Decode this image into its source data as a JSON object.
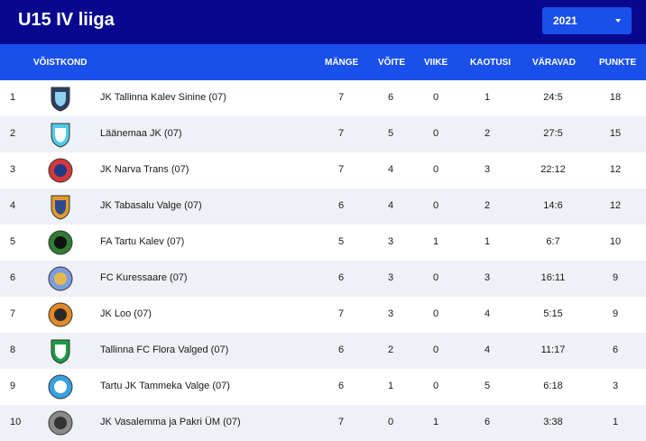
{
  "page": {
    "title": "U15 IV liiga"
  },
  "season_select": {
    "value": "2021",
    "icon": "chevron-down-icon"
  },
  "table": {
    "headers": {
      "team": "VÕISTKOND",
      "played": "MÄNGE",
      "won": "VÕITE",
      "draw": "VIIKE",
      "lost": "KAOTUSI",
      "goals": "VÄRAVAD",
      "points": "PUNKTE"
    },
    "rows": [
      {
        "pos": "1",
        "team": "JK Tallinna Kalev Sinine (07)",
        "played": "7",
        "won": "6",
        "draw": "0",
        "lost": "1",
        "goals": "24:5",
        "points": "18",
        "logo": "tallinna-kalev-crest"
      },
      {
        "pos": "2",
        "team": "Läänemaa JK (07)",
        "played": "7",
        "won": "5",
        "draw": "0",
        "lost": "2",
        "goals": "27:5",
        "points": "15",
        "logo": "laanemaa-crest"
      },
      {
        "pos": "3",
        "team": "JK Narva Trans (07)",
        "played": "7",
        "won": "4",
        "draw": "0",
        "lost": "3",
        "goals": "22:12",
        "points": "12",
        "logo": "narva-trans-crest"
      },
      {
        "pos": "4",
        "team": "JK Tabasalu Valge (07)",
        "played": "6",
        "won": "4",
        "draw": "0",
        "lost": "2",
        "goals": "14:6",
        "points": "12",
        "logo": "tabasalu-crest"
      },
      {
        "pos": "5",
        "team": "FA Tartu Kalev (07)",
        "played": "5",
        "won": "3",
        "draw": "1",
        "lost": "1",
        "goals": "6:7",
        "points": "10",
        "logo": "tartu-kalev-crest"
      },
      {
        "pos": "6",
        "team": "FC Kuressaare (07)",
        "played": "6",
        "won": "3",
        "draw": "0",
        "lost": "3",
        "goals": "16:11",
        "points": "9",
        "logo": "kuressaare-crest"
      },
      {
        "pos": "7",
        "team": "JK Loo (07)",
        "played": "7",
        "won": "3",
        "draw": "0",
        "lost": "4",
        "goals": "5:15",
        "points": "9",
        "logo": "loo-crest"
      },
      {
        "pos": "8",
        "team": "Tallinna FC Flora Valged (07)",
        "played": "6",
        "won": "2",
        "draw": "0",
        "lost": "4",
        "goals": "11:17",
        "points": "6",
        "logo": "flora-crest"
      },
      {
        "pos": "9",
        "team": "Tartu JK Tammeka Valge (07)",
        "played": "6",
        "won": "1",
        "draw": "0",
        "lost": "5",
        "goals": "6:18",
        "points": "3",
        "logo": "tammeka-crest"
      },
      {
        "pos": "10",
        "team": "JK Vasalemma ja Pakri ÜM (07)",
        "played": "7",
        "won": "0",
        "draw": "1",
        "lost": "6",
        "goals": "3:38",
        "points": "1",
        "logo": "vasalemma-crest"
      }
    ]
  },
  "colors": {
    "topbar": "#08088f",
    "accent": "#1a50ea",
    "row_alt": "#eef1f6"
  }
}
